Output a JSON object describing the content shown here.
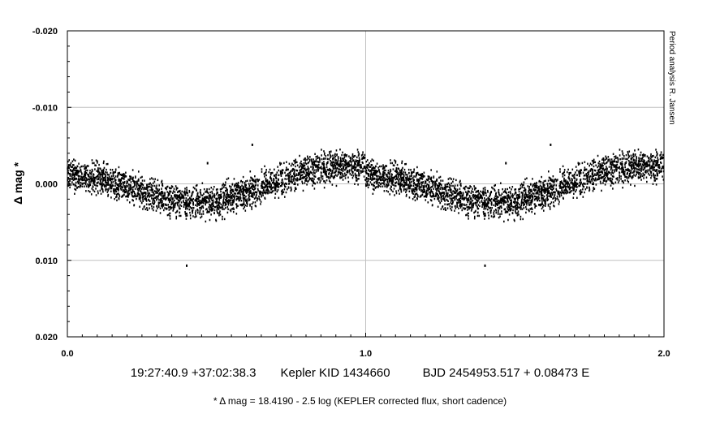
{
  "chart_data": {
    "type": "scatter",
    "title": "",
    "ylabel": "Δ mag *",
    "xlabel": "",
    "xlim": [
      0.0,
      2.0
    ],
    "ylim": [
      -0.02,
      0.02
    ],
    "y_inverted": true,
    "grid": true,
    "x_ticks": [
      {
        "value": 0.0,
        "label": "0.0"
      },
      {
        "value": 1.0,
        "label": "1.0"
      },
      {
        "value": 2.0,
        "label": "2.0"
      }
    ],
    "y_ticks": [
      {
        "value": -0.02,
        "label": "-0.020"
      },
      {
        "value": -0.01,
        "label": "-0.010"
      },
      {
        "value": 0.0,
        "label": "0.000"
      },
      {
        "value": 0.01,
        "label": "0.010"
      },
      {
        "value": 0.02,
        "label": "0.020"
      }
    ],
    "side_annotation": "Period analysis  R. Jansen",
    "series": [
      {
        "phase_period_repeats": 2,
        "curve": [
          {
            "x": 0.0,
            "y": -0.0012
          },
          {
            "x": 0.1,
            "y": -0.0008
          },
          {
            "x": 0.2,
            "y": 0.0003
          },
          {
            "x": 0.3,
            "y": 0.0016
          },
          {
            "x": 0.4,
            "y": 0.0024
          },
          {
            "x": 0.5,
            "y": 0.0023
          },
          {
            "x": 0.6,
            "y": 0.0012
          },
          {
            "x": 0.7,
            "y": -0.0003
          },
          {
            "x": 0.8,
            "y": -0.0015
          },
          {
            "x": 0.9,
            "y": -0.0022
          },
          {
            "x": 1.0,
            "y": -0.0024
          }
        ],
        "scatter_half_width": 0.003,
        "outliers": [
          {
            "x": 0.4,
            "y": 0.0107
          },
          {
            "x": 0.47,
            "y": -0.0027
          },
          {
            "x": 0.62,
            "y": -0.0051
          },
          {
            "x": 1.4,
            "y": 0.0107
          },
          {
            "x": 1.47,
            "y": -0.0027
          },
          {
            "x": 1.62,
            "y": -0.0051
          }
        ]
      }
    ],
    "color": "#000000"
  },
  "caption": {
    "coords": "19:27:40.9 +37:02:38.3",
    "object": "Kepler KID 1434660",
    "ephemeris": "BJD 2454953.517 + 0.08473 E",
    "footnote": "* Δ mag = 18.4190 - 2.5 log (KEPLER corrected flux, short cadence)"
  }
}
